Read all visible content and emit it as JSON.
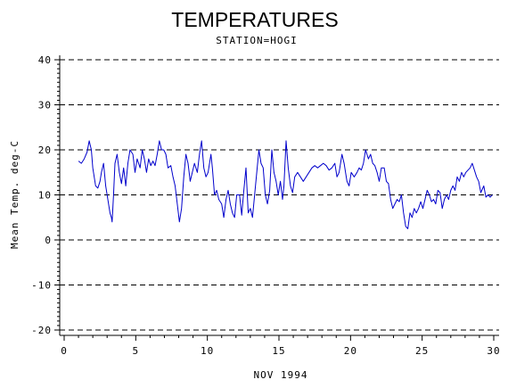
{
  "chart_data": {
    "type": "line",
    "title": "TEMPERATURES",
    "subtitle": "STATION=HOGI",
    "xlabel": "NOV 1994",
    "ylabel": "Mean Temp. deg-C",
    "xlim": [
      0,
      30
    ],
    "ylim": [
      -20,
      40
    ],
    "x_ticks": [
      0,
      5,
      10,
      15,
      20,
      25,
      30
    ],
    "y_ticks": [
      -20,
      -10,
      0,
      10,
      20,
      30,
      40
    ],
    "reference_lines_y": [
      -20,
      -10,
      0,
      10,
      20,
      30,
      40
    ],
    "grid": "dashed horizontal lines at major y ticks",
    "legend": "none",
    "colors": {
      "series": "#0000cc",
      "axis": "#000000",
      "grid": "#000000"
    },
    "series": [
      {
        "values": [
          [
            1.0,
            17.5
          ],
          [
            1.2,
            17.0
          ],
          [
            1.4,
            18.0
          ],
          [
            1.6,
            19.5
          ],
          [
            1.75,
            22.0
          ],
          [
            1.9,
            20.0
          ],
          [
            2.0,
            16.0
          ],
          [
            2.2,
            12.0
          ],
          [
            2.35,
            11.5
          ],
          [
            2.5,
            13.0
          ],
          [
            2.6,
            15.0
          ],
          [
            2.75,
            17.0
          ],
          [
            2.9,
            12.0
          ],
          [
            3.05,
            9.0
          ],
          [
            3.2,
            6.0
          ],
          [
            3.3,
            5.0
          ],
          [
            3.35,
            4.0
          ],
          [
            3.45,
            10.0
          ],
          [
            3.55,
            17.0
          ],
          [
            3.7,
            19.0
          ],
          [
            3.85,
            15.0
          ],
          [
            4.0,
            12.5
          ],
          [
            4.15,
            16.0
          ],
          [
            4.3,
            12.0
          ],
          [
            4.45,
            17.0
          ],
          [
            4.6,
            20.0
          ],
          [
            4.8,
            19.0
          ],
          [
            4.95,
            15.0
          ],
          [
            5.1,
            18.0
          ],
          [
            5.3,
            16.0
          ],
          [
            5.45,
            20.0
          ],
          [
            5.6,
            18.0
          ],
          [
            5.75,
            15.0
          ],
          [
            5.9,
            18.0
          ],
          [
            6.05,
            16.5
          ],
          [
            6.2,
            17.5
          ],
          [
            6.35,
            16.5
          ],
          [
            6.5,
            19.0
          ],
          [
            6.65,
            22.0
          ],
          [
            6.8,
            20.0
          ],
          [
            6.95,
            20.0
          ],
          [
            7.1,
            19.0
          ],
          [
            7.25,
            16.0
          ],
          [
            7.45,
            16.5
          ],
          [
            7.6,
            14.0
          ],
          [
            7.75,
            12.0
          ],
          [
            7.9,
            8.0
          ],
          [
            8.05,
            4.0
          ],
          [
            8.2,
            7.0
          ],
          [
            8.35,
            14.0
          ],
          [
            8.5,
            19.0
          ],
          [
            8.65,
            17.0
          ],
          [
            8.8,
            13.0
          ],
          [
            8.95,
            15.0
          ],
          [
            9.1,
            17.0
          ],
          [
            9.3,
            15.0
          ],
          [
            9.45,
            19.0
          ],
          [
            9.6,
            22.0
          ],
          [
            9.75,
            16.0
          ],
          [
            9.9,
            14.0
          ],
          [
            10.05,
            15.0
          ],
          [
            10.25,
            19.0
          ],
          [
            10.35,
            16.0
          ],
          [
            10.5,
            10.0
          ],
          [
            10.65,
            11.0
          ],
          [
            10.8,
            9.0
          ],
          [
            11.0,
            8.0
          ],
          [
            11.15,
            5.0
          ],
          [
            11.3,
            9.0
          ],
          [
            11.45,
            11.0
          ],
          [
            11.6,
            8.0
          ],
          [
            11.75,
            6.0
          ],
          [
            11.9,
            5.0
          ],
          [
            12.05,
            10.0
          ],
          [
            12.25,
            10.0
          ],
          [
            12.4,
            5.5
          ],
          [
            12.55,
            11.0
          ],
          [
            12.7,
            16.0
          ],
          [
            12.85,
            6.0
          ],
          [
            13.0,
            7.0
          ],
          [
            13.15,
            5.0
          ],
          [
            13.3,
            10.0
          ],
          [
            13.45,
            15.0
          ],
          [
            13.6,
            20.0
          ],
          [
            13.75,
            17.0
          ],
          [
            13.9,
            16.0
          ],
          [
            14.05,
            10.0
          ],
          [
            14.2,
            8.0
          ],
          [
            14.35,
            11.0
          ],
          [
            14.5,
            20.0
          ],
          [
            14.65,
            15.0
          ],
          [
            14.8,
            13.0
          ],
          [
            14.95,
            10.0
          ],
          [
            15.1,
            13.0
          ],
          [
            15.25,
            9.0
          ],
          [
            15.35,
            12.0
          ],
          [
            15.5,
            22.0
          ],
          [
            15.65,
            16.0
          ],
          [
            15.8,
            12.0
          ],
          [
            15.95,
            10.5
          ],
          [
            16.1,
            14.0
          ],
          [
            16.3,
            15.0
          ],
          [
            16.5,
            14.0
          ],
          [
            16.7,
            13.0
          ],
          [
            16.9,
            14.0
          ],
          [
            17.1,
            15.0
          ],
          [
            17.3,
            16.0
          ],
          [
            17.5,
            16.5
          ],
          [
            17.7,
            16.0
          ],
          [
            17.9,
            16.5
          ],
          [
            18.1,
            17.0
          ],
          [
            18.3,
            16.5
          ],
          [
            18.5,
            15.5
          ],
          [
            18.7,
            16.0
          ],
          [
            18.9,
            17.0
          ],
          [
            19.05,
            14.0
          ],
          [
            19.2,
            15.0
          ],
          [
            19.4,
            19.0
          ],
          [
            19.55,
            17.0
          ],
          [
            19.75,
            13.0
          ],
          [
            19.9,
            12.0
          ],
          [
            20.05,
            15.0
          ],
          [
            20.25,
            14.0
          ],
          [
            20.45,
            15.0
          ],
          [
            20.6,
            16.0
          ],
          [
            20.75,
            15.5
          ],
          [
            20.9,
            17.0
          ],
          [
            21.05,
            20.0
          ],
          [
            21.25,
            18.0
          ],
          [
            21.4,
            19.0
          ],
          [
            21.55,
            17.0
          ],
          [
            21.7,
            16.5
          ],
          [
            21.85,
            15.0
          ],
          [
            22.0,
            13.0
          ],
          [
            22.15,
            16.0
          ],
          [
            22.35,
            16.0
          ],
          [
            22.5,
            13.0
          ],
          [
            22.65,
            12.5
          ],
          [
            22.8,
            9.0
          ],
          [
            22.95,
            7.0
          ],
          [
            23.1,
            8.0
          ],
          [
            23.25,
            9.0
          ],
          [
            23.4,
            8.5
          ],
          [
            23.55,
            10.0
          ],
          [
            23.7,
            6.0
          ],
          [
            23.85,
            3.0
          ],
          [
            24.0,
            2.5
          ],
          [
            24.15,
            6.0
          ],
          [
            24.3,
            5.0
          ],
          [
            24.45,
            7.0
          ],
          [
            24.6,
            6.0
          ],
          [
            24.75,
            7.0
          ],
          [
            24.9,
            8.5
          ],
          [
            25.05,
            7.0
          ],
          [
            25.2,
            9.0
          ],
          [
            25.35,
            11.0
          ],
          [
            25.5,
            10.0
          ],
          [
            25.65,
            8.5
          ],
          [
            25.8,
            9.0
          ],
          [
            25.95,
            8.0
          ],
          [
            26.1,
            11.0
          ],
          [
            26.25,
            10.5
          ],
          [
            26.4,
            7.0
          ],
          [
            26.55,
            9.0
          ],
          [
            26.7,
            10.0
          ],
          [
            26.85,
            9.0
          ],
          [
            27.0,
            11.0
          ],
          [
            27.15,
            12.0
          ],
          [
            27.3,
            11.0
          ],
          [
            27.45,
            14.0
          ],
          [
            27.6,
            13.0
          ],
          [
            27.75,
            15.0
          ],
          [
            27.9,
            14.0
          ],
          [
            28.05,
            15.0
          ],
          [
            28.2,
            15.5
          ],
          [
            28.35,
            16.0
          ],
          [
            28.5,
            17.0
          ],
          [
            28.65,
            15.5
          ],
          [
            28.8,
            14.0
          ],
          [
            28.95,
            13.0
          ],
          [
            29.1,
            10.5
          ],
          [
            29.3,
            12.0
          ],
          [
            29.45,
            9.5
          ],
          [
            29.6,
            10.0
          ],
          [
            29.75,
            9.5
          ],
          [
            29.9,
            10.0
          ]
        ]
      }
    ]
  }
}
